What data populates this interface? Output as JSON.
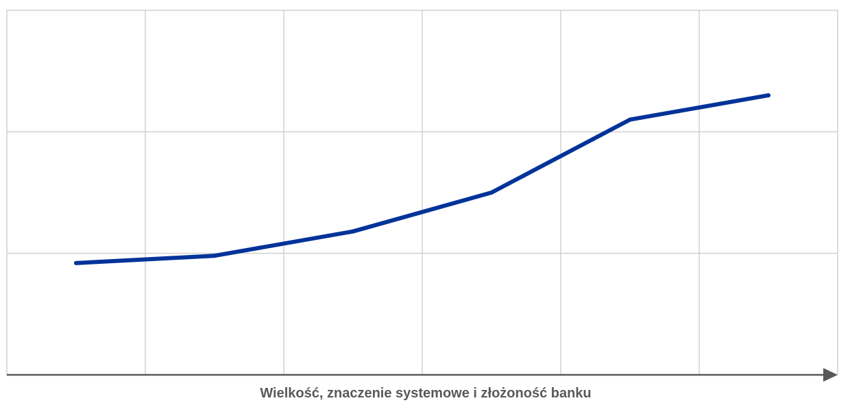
{
  "chart_data": {
    "type": "line",
    "title": "",
    "xlabel": "Wielkość, znaczenie systemowe i złożoność banku",
    "ylabel": "",
    "x_ticks": 6,
    "x_range": [
      0,
      6
    ],
    "ylim": [
      0,
      3
    ],
    "y_ticks": [
      0,
      1,
      2,
      3
    ],
    "grid": true,
    "legend": "none",
    "series": [
      {
        "x": [
          0.5,
          1.5,
          2.5,
          3.5,
          4.5,
          5.5
        ],
        "values": [
          0.92,
          0.98,
          1.18,
          1.5,
          2.1,
          2.3
        ]
      }
    ],
    "colors": {
      "series": "#003399",
      "axis": "#595959",
      "grid": "#d0d0d0"
    }
  }
}
